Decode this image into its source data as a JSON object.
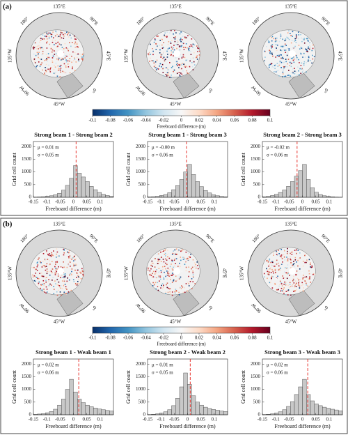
{
  "panel_labels": [
    "(a)",
    "(b)"
  ],
  "map_labels": [
    "135°E",
    "90°E",
    "45°E",
    "0°",
    "45°W",
    "90°W",
    "135°W",
    "180°"
  ],
  "colorbar": {
    "lim": [
      -0.1,
      0.1
    ],
    "ticks": [
      -0.1,
      -0.08,
      -0.06,
      -0.04,
      -0.02,
      0,
      0.02,
      0.04,
      0.06,
      0.08,
      0.1
    ],
    "label": "Freeboard difference (m)",
    "colors": [
      "#08306b",
      "#2166ac",
      "#4393c3",
      "#92c5de",
      "#d1e5f0",
      "#f7f7f7",
      "#fddbc7",
      "#f4a582",
      "#d6604d",
      "#b2182b",
      "#67001f"
    ]
  },
  "chart_data": [
    {
      "type": "histogram",
      "title": "Strong beam 1 - Strong beam 2",
      "annotations": [
        "μ = 0.01 m",
        "σ = 0.05 m"
      ],
      "mean": 0.01,
      "bins": [
        -0.15,
        -0.135,
        -0.12,
        -0.105,
        -0.09,
        -0.075,
        -0.06,
        -0.045,
        -0.03,
        -0.015,
        0,
        0.015,
        0.03,
        0.045,
        0.06,
        0.075,
        0.09,
        0.105,
        0.12,
        0.135,
        0.15
      ],
      "values": [
        10,
        15,
        25,
        40,
        60,
        100,
        160,
        280,
        470,
        750,
        1250,
        950,
        800,
        620,
        430,
        300,
        190,
        120,
        70,
        40
      ],
      "color": "#c8c8c8",
      "mean_color": "#e8302a",
      "xlim": [
        -0.15,
        0.15
      ],
      "ylim": [
        0,
        2200
      ],
      "xticks": [
        -0.15,
        -0.1,
        -0.05,
        0,
        0.05,
        0.1
      ],
      "yticks": [
        0,
        500,
        1000,
        1500,
        2000
      ],
      "x_label": "Freeboard difference (m)",
      "y_label": "Grid cell count"
    },
    {
      "type": "histogram",
      "title": "Strong beam 1 - Strong beam 3",
      "annotations": [
        "μ = -0.00 m",
        "σ = 0.06 m"
      ],
      "mean": -0.004,
      "bins": [
        -0.15,
        -0.135,
        -0.12,
        -0.105,
        -0.09,
        -0.075,
        -0.06,
        -0.045,
        -0.03,
        -0.015,
        0,
        0.015,
        0.03,
        0.045,
        0.06,
        0.075,
        0.09,
        0.105,
        0.12,
        0.135,
        0.15
      ],
      "values": [
        15,
        25,
        40,
        70,
        110,
        180,
        300,
        460,
        700,
        1000,
        1300,
        900,
        620,
        420,
        270,
        170,
        100,
        60,
        35,
        20
      ],
      "color": "#c8c8c8",
      "mean_color": "#e8302a",
      "xlim": [
        -0.15,
        0.15
      ],
      "ylim": [
        0,
        2200
      ],
      "xticks": [
        -0.15,
        -0.1,
        -0.05,
        0,
        0.05,
        0.1
      ],
      "yticks": [
        0,
        500,
        1000,
        1500,
        2000
      ],
      "x_label": "Freeboard difference (m)",
      "y_label": "Grid cell count"
    },
    {
      "type": "histogram",
      "title": "Strong beam 2 - Strong beam 3",
      "annotations": [
        "μ = -0.02 m",
        "σ = 0.06 m"
      ],
      "mean": -0.02,
      "bins": [
        -0.15,
        -0.135,
        -0.12,
        -0.105,
        -0.09,
        -0.075,
        -0.06,
        -0.045,
        -0.03,
        -0.015,
        0,
        0.015,
        0.03,
        0.045,
        0.06,
        0.075,
        0.09,
        0.105,
        0.12,
        0.135,
        0.15
      ],
      "values": [
        20,
        40,
        70,
        120,
        190,
        290,
        430,
        620,
        830,
        1050,
        1300,
        700,
        380,
        200,
        110,
        60,
        35,
        20,
        10,
        5
      ],
      "color": "#c8c8c8",
      "mean_color": "#e8302a",
      "xlim": [
        -0.15,
        0.15
      ],
      "ylim": [
        0,
        2200
      ],
      "xticks": [
        -0.15,
        -0.1,
        -0.05,
        0,
        0.05,
        0.1
      ],
      "yticks": [
        0,
        500,
        1000,
        1500,
        2000
      ],
      "x_label": "Freeboard difference (m)",
      "y_label": "Grid cell count"
    },
    {
      "type": "histogram",
      "title": "Strong beam 1 - Weak beam 1",
      "annotations": [
        "μ = 0.02 m",
        "σ = 0.06 m"
      ],
      "mean": 0.02,
      "bins": [
        -0.15,
        -0.135,
        -0.12,
        -0.105,
        -0.09,
        -0.075,
        -0.06,
        -0.045,
        -0.03,
        -0.015,
        0,
        0.015,
        0.03,
        0.045,
        0.06,
        0.075,
        0.09,
        0.105,
        0.12,
        0.135,
        0.15
      ],
      "values": [
        15,
        30,
        50,
        80,
        130,
        220,
        380,
        620,
        1000,
        1400,
        900,
        620,
        480,
        380,
        320,
        270,
        230,
        200,
        170,
        150
      ],
      "color": "#c8c8c8",
      "mean_color": "#e8302a",
      "xlim": [
        -0.15,
        0.15
      ],
      "ylim": [
        0,
        2200
      ],
      "xticks": [
        -0.15,
        -0.1,
        -0.05,
        0,
        0.05,
        0.1
      ],
      "yticks": [
        0,
        500,
        1000,
        1500,
        2000
      ],
      "x_label": "Freeboard difference (m)",
      "y_label": "Grid cell count"
    },
    {
      "type": "histogram",
      "title": "Strong beam 2 - Weak beam 2",
      "annotations": [
        "μ = 0.01 m",
        "σ = 0.05 m"
      ],
      "mean": 0.01,
      "bins": [
        -0.15,
        -0.135,
        -0.12,
        -0.105,
        -0.09,
        -0.075,
        -0.06,
        -0.045,
        -0.03,
        -0.015,
        0,
        0.015,
        0.03,
        0.045,
        0.06,
        0.075,
        0.09,
        0.105,
        0.12,
        0.135,
        0.15
      ],
      "values": [
        10,
        20,
        40,
        70,
        120,
        200,
        360,
        650,
        1100,
        1650,
        1200,
        750,
        500,
        380,
        300,
        250,
        210,
        180,
        150,
        130
      ],
      "color": "#c8c8c8",
      "mean_color": "#e8302a",
      "xlim": [
        -0.15,
        0.15
      ],
      "ylim": [
        0,
        2200
      ],
      "xticks": [
        -0.15,
        -0.1,
        -0.05,
        0,
        0.05,
        0.1
      ],
      "yticks": [
        0,
        500,
        1000,
        1500,
        2000
      ],
      "x_label": "Freeboard difference (m)",
      "y_label": "Grid cell count"
    },
    {
      "type": "histogram",
      "title": "Strong beam 3 - Weak beam 3",
      "annotations": [
        "μ = 0.02 m",
        "σ = 0.06 m"
      ],
      "mean": 0.02,
      "bins": [
        -0.15,
        -0.135,
        -0.12,
        -0.105,
        -0.09,
        -0.075,
        -0.06,
        -0.045,
        -0.03,
        -0.015,
        0,
        0.015,
        0.03,
        0.045,
        0.06,
        0.075,
        0.09,
        0.105,
        0.12,
        0.135,
        0.15
      ],
      "values": [
        10,
        20,
        40,
        70,
        120,
        200,
        330,
        520,
        800,
        1100,
        1400,
        800,
        550,
        430,
        360,
        300,
        260,
        220,
        190,
        160
      ],
      "color": "#c8c8c8",
      "mean_color": "#e8302a",
      "xlim": [
        -0.15,
        0.15
      ],
      "ylim": [
        0,
        2200
      ],
      "xticks": [
        -0.15,
        -0.1,
        -0.05,
        0,
        0.05,
        0.1
      ],
      "yticks": [
        0,
        500,
        1000,
        1500,
        2000
      ],
      "x_label": "Freeboard difference (m)",
      "y_label": "Grid cell count"
    }
  ]
}
